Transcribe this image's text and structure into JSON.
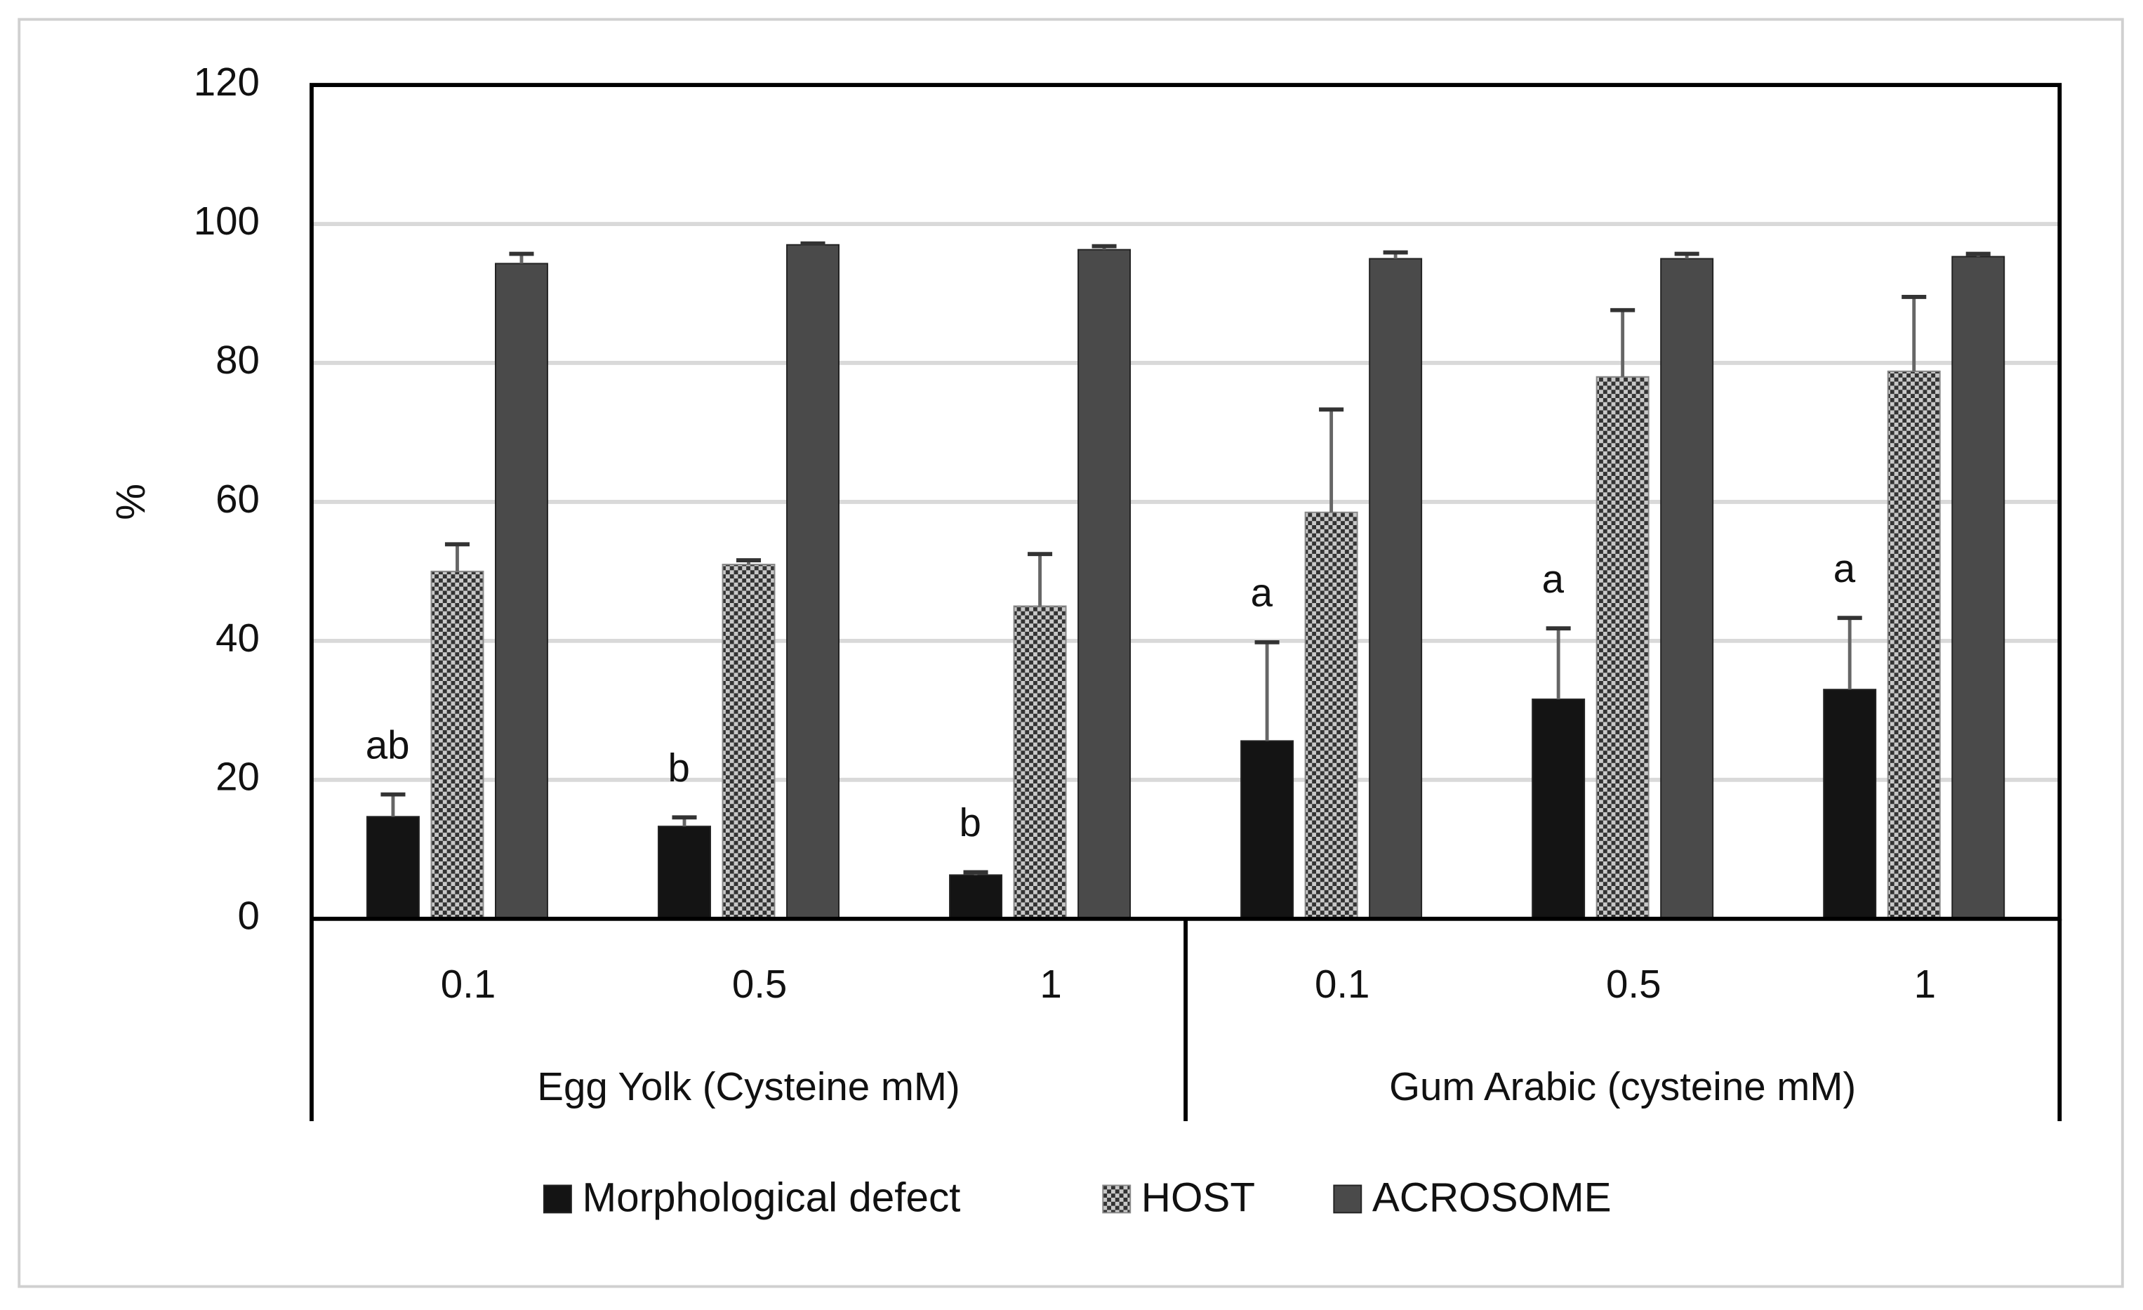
{
  "chart_data": {
    "type": "bar",
    "y_label": "%",
    "categories": [
      "0.1",
      "0.5",
      "1",
      "0.1",
      "0.5",
      "1"
    ],
    "groups": [
      {
        "label": "Egg Yolk (Cysteine mM)",
        "size": 3
      },
      {
        "label": "Gum Arabic (cysteine mM)",
        "size": 3
      }
    ],
    "series": [
      {
        "name": "Morphological defect",
        "color": "#141414",
        "pattern": false,
        "values": [
          14.7,
          13.3,
          6.3,
          25.6,
          31.6,
          33.0
        ],
        "errors": [
          3.2,
          1.3,
          0.4,
          14.2,
          10.2,
          10.3
        ],
        "annotations": [
          "ab",
          "b",
          "b",
          "a",
          "a",
          "a"
        ]
      },
      {
        "name": "HOST",
        "color": "#c8c8c8",
        "pattern": true,
        "values": [
          50.0,
          51.0,
          45.0,
          58.5,
          78.0,
          78.8
        ],
        "errors": [
          3.9,
          0.6,
          7.5,
          14.8,
          9.6,
          10.7
        ]
      },
      {
        "name": "ACROSOME",
        "color": "#4a4a4a",
        "pattern": false,
        "values": [
          94.3,
          97.0,
          96.3,
          95.0,
          95.0,
          95.3
        ],
        "errors": [
          1.4,
          0.2,
          0.5,
          0.9,
          0.7,
          0.4
        ]
      }
    ],
    "ylim": [
      0,
      120
    ],
    "yticks": [
      0,
      20,
      40,
      60,
      80,
      100,
      120
    ],
    "grid": true,
    "legend": "bottom"
  }
}
